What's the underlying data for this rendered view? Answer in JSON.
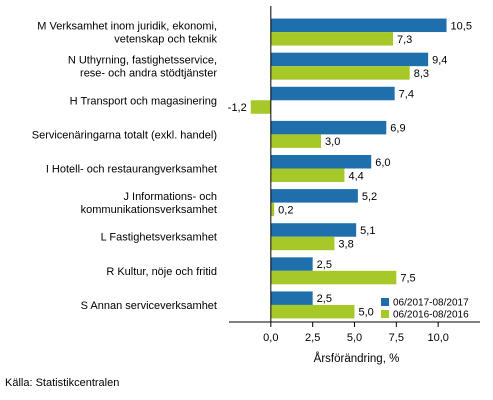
{
  "chart_data": {
    "type": "bar",
    "orientation": "horizontal",
    "categories": [
      "M Verksamhet inom juridik, ekonomi,\nvetenskap och teknik",
      "N Uthyrning, fastighetsservice,\nrese- och andra stödtjänster",
      "H Transport och magasinering",
      "Servicenäringarna totalt (exkl. handel)",
      "I Hotell- och restaurangverksamhet",
      "J Informations- och\nkommunikationsverksamhet",
      "L Fastighetsverksamhet",
      "R Kultur, nöje och fritid",
      "S Annan serviceverksamhet"
    ],
    "series": [
      {
        "name": "06/2017-08/2017",
        "color": "#1f6fad",
        "values": [
          10.5,
          9.4,
          7.4,
          6.9,
          6.0,
          5.2,
          5.1,
          2.5,
          2.5
        ],
        "labels": [
          "10,5",
          "9,4",
          "7,4",
          "6,9",
          "6,0",
          "5,2",
          "5,1",
          "2,5",
          "2,5"
        ]
      },
      {
        "name": "06/2016-08/2016",
        "color": "#a6c829",
        "values": [
          7.3,
          8.3,
          -1.2,
          3.0,
          4.4,
          0.2,
          3.8,
          7.5,
          5.0
        ],
        "labels": [
          "7,3",
          "8,3",
          "-1,2",
          "3,0",
          "4,4",
          "0,2",
          "3,8",
          "7,5",
          "5,0"
        ]
      }
    ],
    "xlim": [
      -2.5,
      12.5
    ],
    "ticks": [
      0,
      2.5,
      5,
      7.5,
      10
    ],
    "tick_labels": [
      "0,0",
      "2,5",
      "5,0",
      "7,5",
      "10,0"
    ],
    "xlabel": "Årsförändring, %",
    "ylabel": "",
    "title": "",
    "legend_position": "bottom-right",
    "grid": false
  },
  "source": "Källa: Statistikcentralen"
}
